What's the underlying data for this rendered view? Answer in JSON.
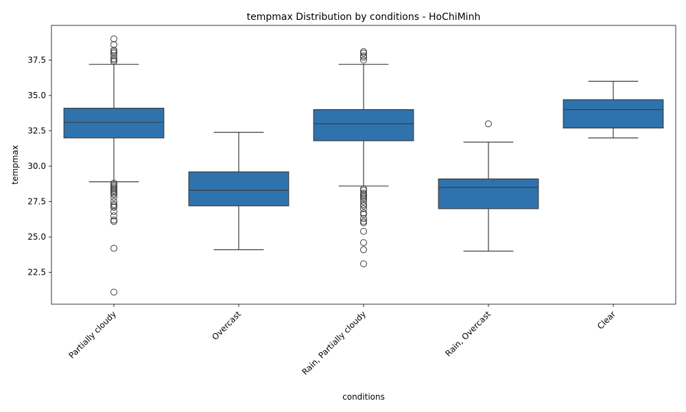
{
  "chart_data": {
    "type": "box",
    "title": "tempmax Distribution by conditions - HoChiMinh",
    "xlabel": "conditions",
    "ylabel": "tempmax",
    "ylim": [
      20.25,
      39.95
    ],
    "yticks": [
      22.5,
      25.0,
      27.5,
      30.0,
      32.5,
      35.0,
      37.5
    ],
    "ytick_labels": [
      "22.5",
      "25.0",
      "27.5",
      "30.0",
      "32.5",
      "35.0",
      "37.5"
    ],
    "grid": false,
    "box_color": "#2f73ae",
    "categories": [
      "Partially cloudy",
      "Overcast",
      "Rain, Partially cloudy",
      "Rain, Overcast",
      "Clear"
    ],
    "boxes": [
      {
        "q1": 32.0,
        "median": 33.1,
        "q3": 34.1,
        "whisker_low": 28.9,
        "whisker_high": 37.2,
        "outliers": [
          39.0,
          38.6,
          38.2,
          38.1,
          38.0,
          37.8,
          37.6,
          37.5,
          37.4,
          28.8,
          28.7,
          28.6,
          28.5,
          28.4,
          28.3,
          28.2,
          28.1,
          28.0,
          27.8,
          27.5,
          27.3,
          27.2,
          27.1,
          26.8,
          26.5,
          26.2,
          26.1,
          24.2,
          21.1
        ]
      },
      {
        "q1": 27.2,
        "median": 28.3,
        "q3": 29.6,
        "whisker_low": 24.1,
        "whisker_high": 32.4,
        "outliers": []
      },
      {
        "q1": 31.8,
        "median": 33.0,
        "q3": 34.0,
        "whisker_low": 28.6,
        "whisker_high": 37.2,
        "outliers": [
          38.1,
          38.0,
          37.8,
          37.7,
          37.5,
          28.4,
          28.3,
          28.1,
          28.0,
          27.9,
          27.8,
          27.7,
          27.5,
          27.3,
          27.2,
          27.0,
          26.7,
          26.6,
          26.3,
          26.1,
          26.0,
          25.4,
          24.6,
          24.1,
          23.1
        ]
      },
      {
        "q1": 27.0,
        "median": 28.5,
        "q3": 29.1,
        "whisker_low": 24.0,
        "whisker_high": 31.7,
        "outliers": [
          33.0
        ]
      },
      {
        "q1": 32.7,
        "median": 34.0,
        "q3": 34.7,
        "whisker_low": 32.0,
        "whisker_high": 36.0,
        "outliers": []
      }
    ]
  }
}
